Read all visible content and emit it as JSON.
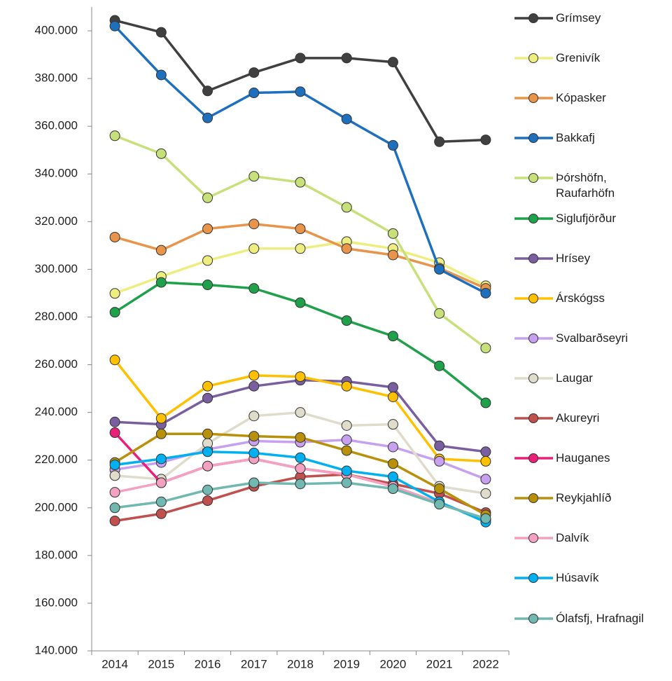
{
  "chart_data": {
    "type": "line",
    "categories": [
      "2014",
      "2015",
      "2016",
      "2017",
      "2018",
      "2019",
      "2020",
      "2021",
      "2022"
    ],
    "ylim": [
      140000,
      410000
    ],
    "yticks": [
      {
        "value": 140000,
        "label": "140.000"
      },
      {
        "value": 160000,
        "label": "160.000"
      },
      {
        "value": 180000,
        "label": "180.000"
      },
      {
        "value": 200000,
        "label": "200.000"
      },
      {
        "value": 220000,
        "label": "220.000"
      },
      {
        "value": 240000,
        "label": "240.000"
      },
      {
        "value": 260000,
        "label": "260.000"
      },
      {
        "value": 280000,
        "label": "280.000"
      },
      {
        "value": 300000,
        "label": "300.000"
      },
      {
        "value": 320000,
        "label": "320.000"
      },
      {
        "value": 340000,
        "label": "340.000"
      },
      {
        "value": 360000,
        "label": "360.000"
      },
      {
        "value": 380000,
        "label": "380.000"
      },
      {
        "value": 400000,
        "label": "400.000"
      }
    ],
    "grid": false,
    "legend": "right",
    "series": [
      {
        "name": "Grímsey",
        "color": "#404040",
        "values": [
          404400,
          399400,
          374800,
          382500,
          388600,
          388600,
          386900,
          353500,
          354300
        ]
      },
      {
        "name": "Grenivík",
        "color": "#eeee80",
        "values": [
          289900,
          297000,
          303700,
          308700,
          308700,
          311600,
          308700,
          302800,
          293100
        ]
      },
      {
        "name": "Kópasker",
        "color": "#e8944a",
        "values": [
          313500,
          308000,
          317000,
          319000,
          317000,
          308700,
          306000,
          300500,
          292000
        ]
      },
      {
        "name": "Bakkafj",
        "color": "#1f6fbf",
        "values": [
          402000,
          381500,
          363500,
          374000,
          374500,
          363000,
          352000,
          300000,
          290000
        ]
      },
      {
        "name": "Þórshöfn, Raufarhöfn",
        "color": "#c8e07a",
        "values": [
          356000,
          348500,
          330000,
          339000,
          336500,
          326000,
          315000,
          281500,
          267000
        ]
      },
      {
        "name": "Siglufjörður",
        "color": "#1fa04a",
        "values": [
          282000,
          294500,
          293500,
          292000,
          286000,
          278500,
          272000,
          259500,
          244000
        ]
      },
      {
        "name": "Hrísey",
        "color": "#7a5fa0",
        "values": [
          236000,
          235000,
          246000,
          251000,
          253500,
          253000,
          250500,
          226000,
          223500
        ]
      },
      {
        "name": "Árskógss",
        "color": "#ffc000",
        "values": [
          262000,
          237500,
          251000,
          255500,
          255000,
          251000,
          246500,
          220500,
          219500
        ]
      },
      {
        "name": "Svalbarðseyri",
        "color": "#c8a0f0",
        "values": [
          216000,
          219000,
          224500,
          228000,
          227500,
          228500,
          225500,
          219500,
          212000
        ]
      },
      {
        "name": "Laugar",
        "color": "#e0dccc",
        "values": [
          213500,
          212000,
          227000,
          238500,
          240000,
          234500,
          235000,
          209000,
          206000
        ]
      },
      {
        "name": "Akureyri",
        "color": "#c0504d",
        "values": [
          194500,
          197500,
          203000,
          209000,
          213000,
          214000,
          210000,
          206000,
          198000
        ]
      },
      {
        "name": "Hauganes",
        "color": "#e8207a",
        "values": [
          231500,
          210500,
          217500,
          220500,
          216500,
          214000,
          209000,
          202000,
          195000
        ]
      },
      {
        "name": "Reykjahlíð",
        "color": "#b8900a",
        "values": [
          219000,
          231000,
          231000,
          230000,
          229500,
          224000,
          218500,
          208000,
          197000
        ]
      },
      {
        "name": "Dalvík",
        "color": "#f4a0c0",
        "values": [
          206500,
          210500,
          217500,
          220500,
          216500,
          214000,
          209000,
          202000,
          195000
        ]
      },
      {
        "name": "Húsavík",
        "color": "#00b0f0",
        "values": [
          218000,
          220500,
          223500,
          223000,
          221000,
          215500,
          213000,
          202500,
          194000
        ]
      },
      {
        "name": "Ólafsfj, Hrafnagil",
        "color": "#70b8b0",
        "values": [
          200000,
          202500,
          207500,
          210500,
          210000,
          210500,
          208000,
          201500,
          195500
        ]
      }
    ]
  }
}
